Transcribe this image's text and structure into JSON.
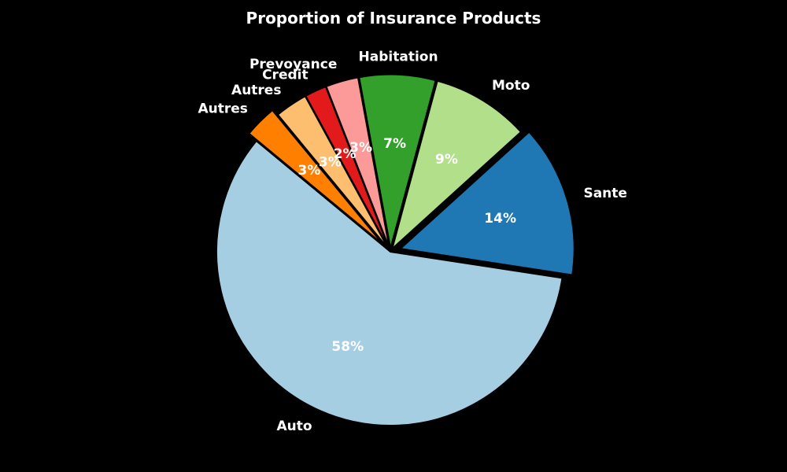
{
  "chart_data": {
    "type": "pie",
    "title": "Proportion of Insurance Products",
    "start_angle_deg": 140.4,
    "direction": "counterclockwise",
    "slices": [
      {
        "label": "Auto",
        "value": 58,
        "pct_label": "58%",
        "color": "#a6cee3",
        "explode": 0
      },
      {
        "label": "Sante",
        "value": 14,
        "pct_label": "14%",
        "color": "#1f78b4",
        "explode": 0.06
      },
      {
        "label": "Moto",
        "value": 9,
        "pct_label": "9%",
        "color": "#b2df8a",
        "explode": 0.02
      },
      {
        "label": "Habitation",
        "value": 7,
        "pct_label": "7%",
        "color": "#33a02c",
        "explode": 0.02
      },
      {
        "label": "Prevoyance",
        "value": 3,
        "pct_label": "3%",
        "color": "#fb9a99",
        "explode": 0.02
      },
      {
        "label": "Credit",
        "value": 2,
        "pct_label": "2%",
        "color": "#e31a1c",
        "explode": 0.02
      },
      {
        "label": "Autres",
        "value": 3,
        "pct_label": "3%",
        "color": "#fdbf6f",
        "explode": 0.02
      },
      {
        "label": "Autres",
        "value": 3,
        "pct_label": "3%",
        "color": "#ff7f00",
        "explode": 0.06
      }
    ]
  }
}
